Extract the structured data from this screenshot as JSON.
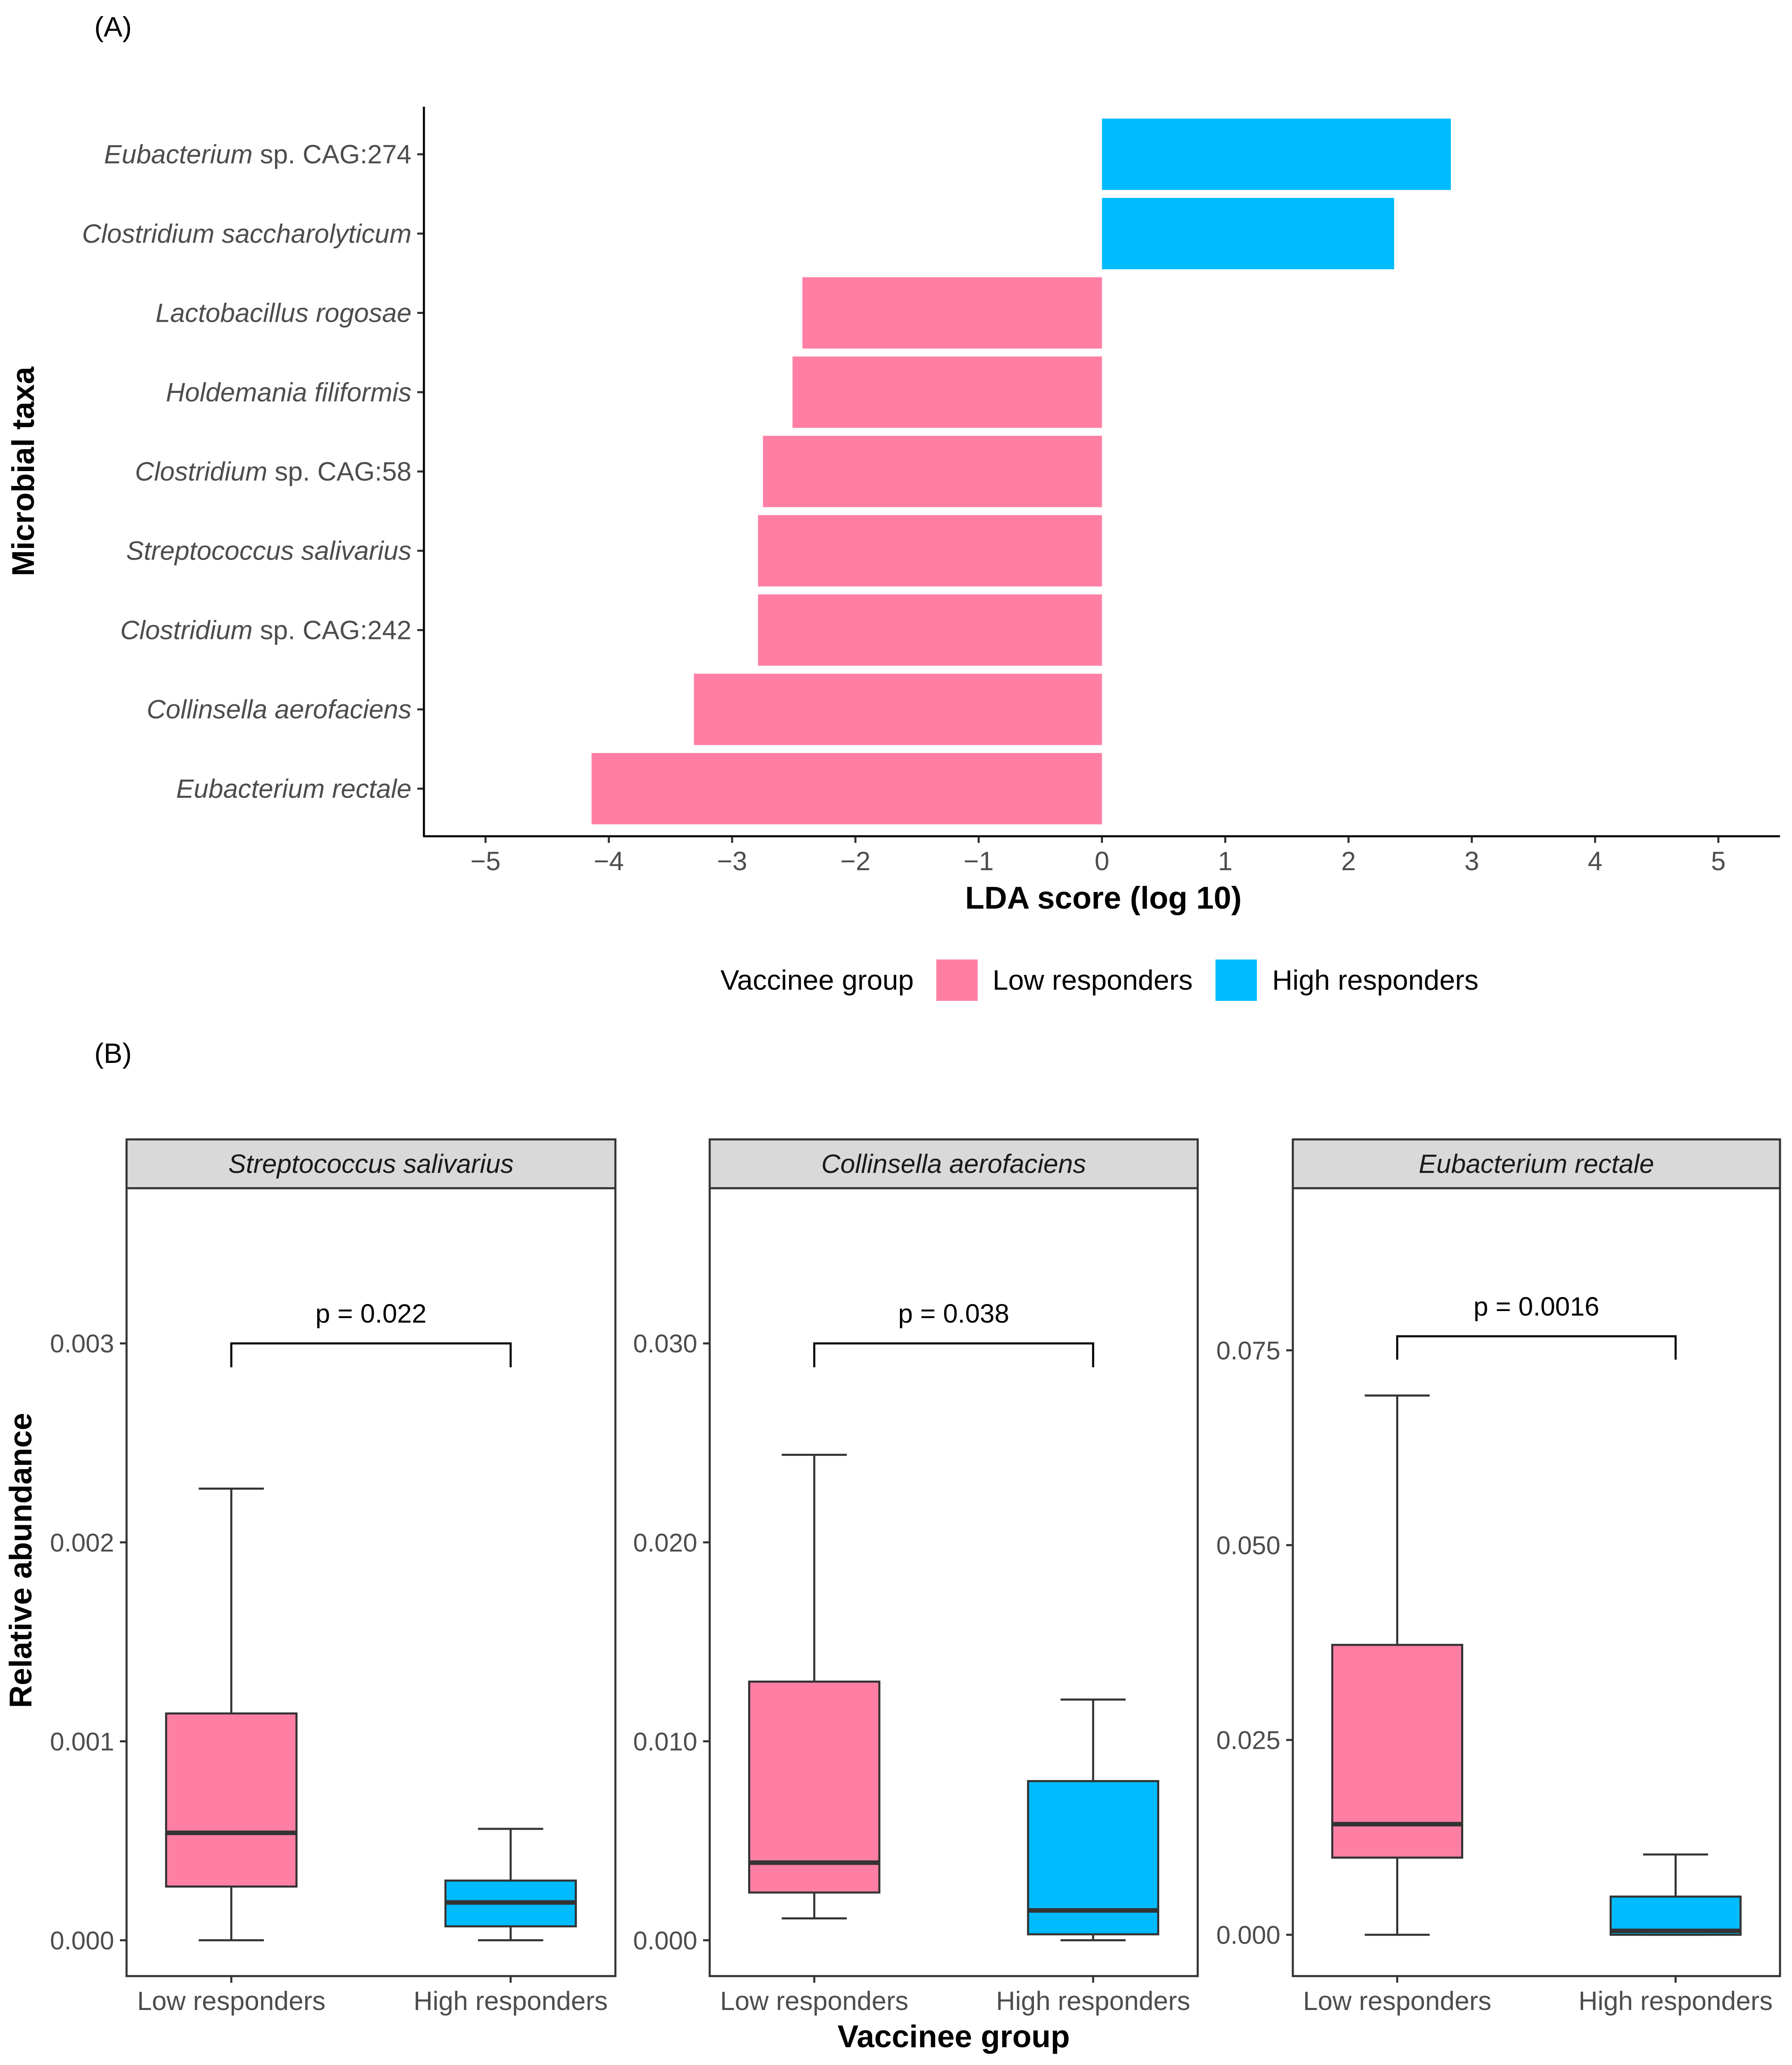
{
  "chart_data": [
    {
      "panel_label": "(A)",
      "type": "bar",
      "orientation": "horizontal",
      "xlabel": "LDA score (log 10)",
      "ylabel": "Microbial taxa",
      "xlim": [
        -5.5,
        5.5
      ],
      "xticks": [
        -5,
        -4,
        -3,
        -2,
        -1,
        0,
        1,
        2,
        3,
        4,
        5
      ],
      "xtick_labels": [
        "−5",
        "−4",
        "−3",
        "−2",
        "−1",
        "0",
        "1",
        "2",
        "3",
        "4",
        "5"
      ],
      "categories": [
        {
          "italic": "Eubacterium",
          "rest": " sp. CAG:274",
          "value": 2.83,
          "group": "High responders"
        },
        {
          "italic": "Clostridium saccharolyticum",
          "rest": "",
          "value": 2.37,
          "group": "High responders"
        },
        {
          "italic": "Lactobacillus rogosae",
          "rest": "",
          "value": -2.43,
          "group": "Low responders"
        },
        {
          "italic": "Holdemania filiformis",
          "rest": "",
          "value": -2.51,
          "group": "Low responders"
        },
        {
          "italic": "Clostridium",
          "rest": " sp. CAG:58",
          "value": -2.75,
          "group": "Low responders"
        },
        {
          "italic": "Streptococcus salivarius",
          "rest": "",
          "value": -2.79,
          "group": "Low responders"
        },
        {
          "italic": "Clostridium",
          "rest": " sp. CAG:242",
          "value": -2.79,
          "group": "Low responders"
        },
        {
          "italic": "Collinsella aerofaciens",
          "rest": "",
          "value": -3.31,
          "group": "Low responders"
        },
        {
          "italic": "Eubacterium rectale",
          "rest": "",
          "value": -4.14,
          "group": "Low responders"
        }
      ],
      "legend": {
        "title": "Vaccinee group",
        "placement": "bottom",
        "items": [
          {
            "label": "Low responders",
            "color": "#FF7FA4"
          },
          {
            "label": "High responders",
            "color": "#00BBFF"
          }
        ]
      },
      "colors": {
        "Low responders": "#FF7FA4",
        "High responders": "#00BBFF"
      }
    },
    {
      "panel_label": "(B)",
      "type": "box",
      "xlabel": "Vaccinee group",
      "ylabel": "Relative abundance",
      "groups": [
        "Low responders",
        "High responders"
      ],
      "colors": {
        "Low responders": "#FF7FA4",
        "High responders": "#00BBFF"
      },
      "facets": [
        {
          "title": "Streptococcus salivarius",
          "ylim": [
            -0.00018,
            0.00378
          ],
          "yticks": [
            0,
            0.001,
            0.002,
            0.003
          ],
          "ytick_labels": [
            "0.000",
            "0.001",
            "0.002",
            "0.003"
          ],
          "p_label": "p = 0.022",
          "bracket_y": 0.003,
          "bracket_drop": 0.00012,
          "boxes": [
            {
              "group": "Low responders",
              "min": 0.0,
              "q1": 0.00027,
              "median": 0.00054,
              "q3": 0.00114,
              "max": 0.00227
            },
            {
              "group": "High responders",
              "min": 0.0,
              "q1": 7e-05,
              "median": 0.00019,
              "q3": 0.0003,
              "max": 0.00056
            }
          ]
        },
        {
          "title": "Collinsella aerofaciens",
          "ylim": [
            -0.0018,
            0.0378
          ],
          "yticks": [
            0,
            0.01,
            0.02,
            0.03
          ],
          "ytick_labels": [
            "0.000",
            "0.010",
            "0.020",
            "0.030"
          ],
          "p_label": "p = 0.038",
          "bracket_y": 0.03,
          "bracket_drop": 0.0012,
          "boxes": [
            {
              "group": "Low responders",
              "min": 0.0011,
              "q1": 0.0024,
              "median": 0.0039,
              "q3": 0.013,
              "max": 0.0244
            },
            {
              "group": "High responders",
              "min": 0.0,
              "q1": 0.0003,
              "median": 0.0015,
              "q3": 0.008,
              "max": 0.0121
            }
          ]
        },
        {
          "title": "Eubacterium rectale",
          "ylim": [
            -0.0053,
            0.0958
          ],
          "yticks": [
            0,
            0.025,
            0.05,
            0.075
          ],
          "ytick_labels": [
            "0.000",
            "0.025",
            "0.050",
            "0.075"
          ],
          "p_label": "p = 0.0016",
          "bracket_y": 0.0768,
          "bracket_drop": 0.003,
          "boxes": [
            {
              "group": "Low responders",
              "min": 0.0,
              "q1": 0.0099,
              "median": 0.0142,
              "q3": 0.0372,
              "max": 0.0692
            },
            {
              "group": "High responders",
              "min": 0.0,
              "q1": 0.0,
              "median": 0.0005,
              "q3": 0.0049,
              "max": 0.0103
            }
          ]
        }
      ]
    }
  ]
}
